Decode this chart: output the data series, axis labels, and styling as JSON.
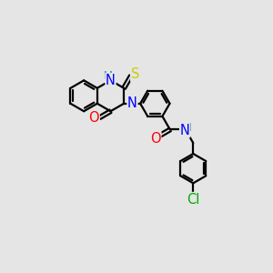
{
  "bg_color": "#e5e5e5",
  "atom_colors": {
    "C": "#000000",
    "N": "#0000ff",
    "O": "#ff0000",
    "S": "#cccc00",
    "Cl": "#00aa00",
    "H": "#008888"
  },
  "bond_color": "#000000",
  "bond_width": 1.6,
  "font_size": 9.5
}
